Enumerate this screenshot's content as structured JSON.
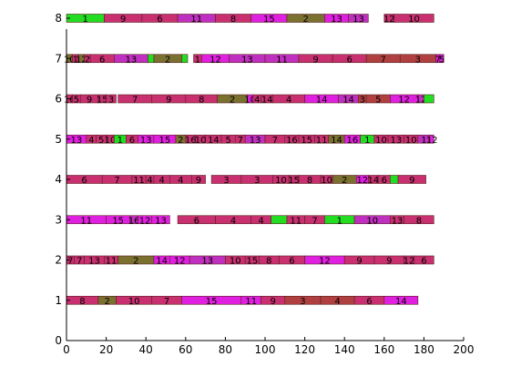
{
  "chart_data": {
    "type": "bar",
    "orientation": "horizontal-stacked",
    "title": "",
    "xlabel": "",
    "ylabel": "",
    "xlim": [
      0,
      200
    ],
    "ylim": [
      0,
      8
    ],
    "xticks": [
      0,
      20,
      40,
      60,
      80,
      100,
      120,
      140,
      160,
      180,
      200
    ],
    "yticks": [
      0,
      1,
      2,
      3,
      4,
      5,
      6,
      7,
      8
    ],
    "grid": false,
    "legend": "none",
    "colors": {
      "bright_green": "#22dd22",
      "magenta": "#e020e0",
      "rose": "#c83070",
      "red_brown": "#b04040",
      "olive": "#7a7030",
      "purple": "#c030c0"
    },
    "rows": [
      {
        "y": 8,
        "segments": [
          {
            "start": 0,
            "end": 19,
            "label": "1",
            "color": "#22dd22"
          },
          {
            "start": 19,
            "end": 38,
            "label": "9",
            "color": "#c83070"
          },
          {
            "start": 38,
            "end": 56,
            "label": "6",
            "color": "#c83070"
          },
          {
            "start": 56,
            "end": 75,
            "label": "11",
            "color": "#c030c0"
          },
          {
            "start": 75,
            "end": 93,
            "label": "8",
            "color": "#c83070"
          },
          {
            "start": 93,
            "end": 111,
            "label": "15",
            "color": "#e020e0"
          },
          {
            "start": 111,
            "end": 130,
            "label": "2",
            "color": "#7a7030"
          },
          {
            "start": 130,
            "end": 142,
            "label": "13",
            "color": "#e020e0"
          },
          {
            "start": 142,
            "end": 152,
            "label": "13",
            "color": "#c030c0"
          },
          {
            "start": 160,
            "end": 165,
            "label": "12",
            "color": "#c83070"
          },
          {
            "start": 165,
            "end": 185,
            "label": "10",
            "color": "#c83070"
          }
        ]
      },
      {
        "y": 7,
        "segments": [
          {
            "start": 0,
            "end": 3,
            "label": "10",
            "color": "#7a7030"
          },
          {
            "start": 3,
            "end": 6,
            "label": "1",
            "color": "#c83070"
          },
          {
            "start": 6,
            "end": 9,
            "label": "12",
            "color": "#7a7030"
          },
          {
            "start": 9,
            "end": 12,
            "label": "2",
            "color": "#c83070"
          },
          {
            "start": 12,
            "end": 24,
            "label": "6",
            "color": "#c83070"
          },
          {
            "start": 24,
            "end": 41,
            "label": "13",
            "color": "#c030c0"
          },
          {
            "start": 41,
            "end": 44,
            "label": "",
            "color": "#22dd22"
          },
          {
            "start": 44,
            "end": 58,
            "label": "2",
            "color": "#7a7030"
          },
          {
            "start": 58,
            "end": 61,
            "label": "",
            "color": "#22dd22"
          },
          {
            "start": 64,
            "end": 68,
            "label": "1",
            "color": "#c83070"
          },
          {
            "start": 68,
            "end": 82,
            "label": "12",
            "color": "#e020e0"
          },
          {
            "start": 82,
            "end": 100,
            "label": "13",
            "color": "#c030c0"
          },
          {
            "start": 100,
            "end": 117,
            "label": "11",
            "color": "#c030c0"
          },
          {
            "start": 117,
            "end": 134,
            "label": "9",
            "color": "#c83070"
          },
          {
            "start": 134,
            "end": 151,
            "label": "6",
            "color": "#c83070"
          },
          {
            "start": 151,
            "end": 168,
            "label": "7",
            "color": "#b04040"
          },
          {
            "start": 168,
            "end": 186,
            "label": "3",
            "color": "#b04040"
          },
          {
            "start": 186,
            "end": 188,
            "label": "7",
            "color": "#e020e0"
          },
          {
            "start": 188,
            "end": 190,
            "label": "5",
            "color": "#e020e0"
          }
        ]
      },
      {
        "y": 6,
        "segments": [
          {
            "start": 0,
            "end": 3,
            "label": "16",
            "color": "#c83070"
          },
          {
            "start": 3,
            "end": 7,
            "label": "5",
            "color": "#c83070"
          },
          {
            "start": 7,
            "end": 16,
            "label": "9",
            "color": "#c83070"
          },
          {
            "start": 16,
            "end": 20,
            "label": "15",
            "color": "#c83070"
          },
          {
            "start": 20,
            "end": 25,
            "label": "3",
            "color": "#c83070"
          },
          {
            "start": 26,
            "end": 43,
            "label": "7",
            "color": "#c83070"
          },
          {
            "start": 43,
            "end": 60,
            "label": "9",
            "color": "#c83070"
          },
          {
            "start": 60,
            "end": 76,
            "label": "8",
            "color": "#c83070"
          },
          {
            "start": 76,
            "end": 91,
            "label": "2",
            "color": "#7a7030"
          },
          {
            "start": 91,
            "end": 94,
            "label": "10",
            "color": "#e020e0"
          },
          {
            "start": 94,
            "end": 98,
            "label": "4",
            "color": "#c83070"
          },
          {
            "start": 98,
            "end": 104,
            "label": "14",
            "color": "#c83070"
          },
          {
            "start": 104,
            "end": 120,
            "label": "4",
            "color": "#c83070"
          },
          {
            "start": 120,
            "end": 137,
            "label": "14",
            "color": "#e020e0"
          },
          {
            "start": 137,
            "end": 147,
            "label": "14",
            "color": "#c030c0"
          },
          {
            "start": 147,
            "end": 151,
            "label": "3",
            "color": "#b04040"
          },
          {
            "start": 151,
            "end": 163,
            "label": "5",
            "color": "#b04040"
          },
          {
            "start": 163,
            "end": 177,
            "label": "12",
            "color": "#e020e0"
          },
          {
            "start": 177,
            "end": 180,
            "label": "12",
            "color": "#c030c0"
          },
          {
            "start": 180,
            "end": 185,
            "label": "",
            "color": "#22dd22"
          }
        ]
      },
      {
        "y": 5,
        "segments": [
          {
            "start": 0,
            "end": 10,
            "label": "13",
            "color": "#e020e0"
          },
          {
            "start": 10,
            "end": 15,
            "label": "4",
            "color": "#c83070"
          },
          {
            "start": 15,
            "end": 20,
            "label": "5",
            "color": "#c83070"
          },
          {
            "start": 20,
            "end": 24,
            "label": "10",
            "color": "#c83070"
          },
          {
            "start": 24,
            "end": 30,
            "label": "1",
            "color": "#22dd22"
          },
          {
            "start": 30,
            "end": 36,
            "label": "6",
            "color": "#c83070"
          },
          {
            "start": 36,
            "end": 44,
            "label": "13",
            "color": "#e020e0"
          },
          {
            "start": 44,
            "end": 55,
            "label": "15",
            "color": "#e020e0"
          },
          {
            "start": 55,
            "end": 60,
            "label": "2",
            "color": "#7a7030"
          },
          {
            "start": 60,
            "end": 65,
            "label": "16",
            "color": "#c83070"
          },
          {
            "start": 65,
            "end": 70,
            "label": "10",
            "color": "#c83070"
          },
          {
            "start": 70,
            "end": 78,
            "label": "14",
            "color": "#c83070"
          },
          {
            "start": 78,
            "end": 85,
            "label": "5",
            "color": "#c83070"
          },
          {
            "start": 85,
            "end": 90,
            "label": "7",
            "color": "#c83070"
          },
          {
            "start": 90,
            "end": 100,
            "label": "13",
            "color": "#c030c0"
          },
          {
            "start": 100,
            "end": 110,
            "label": "7",
            "color": "#c83070"
          },
          {
            "start": 110,
            "end": 117,
            "label": "16",
            "color": "#c83070"
          },
          {
            "start": 117,
            "end": 125,
            "label": "15",
            "color": "#c83070"
          },
          {
            "start": 125,
            "end": 132,
            "label": "11",
            "color": "#c83070"
          },
          {
            "start": 132,
            "end": 140,
            "label": "14",
            "color": "#7a7030"
          },
          {
            "start": 140,
            "end": 148,
            "label": "16",
            "color": "#e020e0"
          },
          {
            "start": 148,
            "end": 155,
            "label": "1",
            "color": "#22dd22"
          },
          {
            "start": 155,
            "end": 162,
            "label": "10",
            "color": "#c83070"
          },
          {
            "start": 162,
            "end": 170,
            "label": "13",
            "color": "#c83070"
          },
          {
            "start": 170,
            "end": 177,
            "label": "10",
            "color": "#c83070"
          },
          {
            "start": 177,
            "end": 183,
            "label": "1",
            "color": "#c030c0"
          },
          {
            "start": 183,
            "end": 185,
            "label": "12",
            "color": "#e020e0"
          }
        ]
      },
      {
        "y": 4,
        "segments": [
          {
            "start": 0,
            "end": 18,
            "label": "6",
            "color": "#c83070"
          },
          {
            "start": 18,
            "end": 33,
            "label": "7",
            "color": "#c83070"
          },
          {
            "start": 33,
            "end": 40,
            "label": "11",
            "color": "#c83070"
          },
          {
            "start": 40,
            "end": 44,
            "label": "4",
            "color": "#c83070"
          },
          {
            "start": 44,
            "end": 52,
            "label": "4",
            "color": "#c83070"
          },
          {
            "start": 52,
            "end": 63,
            "label": "4",
            "color": "#c83070"
          },
          {
            "start": 63,
            "end": 70,
            "label": "9",
            "color": "#c83070"
          },
          {
            "start": 73,
            "end": 88,
            "label": "3",
            "color": "#c83070"
          },
          {
            "start": 88,
            "end": 104,
            "label": "3",
            "color": "#c83070"
          },
          {
            "start": 104,
            "end": 112,
            "label": "10",
            "color": "#c83070"
          },
          {
            "start": 112,
            "end": 117,
            "label": "15",
            "color": "#c83070"
          },
          {
            "start": 117,
            "end": 128,
            "label": "8",
            "color": "#c83070"
          },
          {
            "start": 128,
            "end": 134,
            "label": "10",
            "color": "#c83070"
          },
          {
            "start": 134,
            "end": 146,
            "label": "2",
            "color": "#7a7030"
          },
          {
            "start": 146,
            "end": 152,
            "label": "12",
            "color": "#e020e0"
          },
          {
            "start": 152,
            "end": 157,
            "label": "14",
            "color": "#c83070"
          },
          {
            "start": 157,
            "end": 163,
            "label": "6",
            "color": "#c83070"
          },
          {
            "start": 163,
            "end": 167,
            "label": "",
            "color": "#22dd22"
          },
          {
            "start": 167,
            "end": 181,
            "label": "9",
            "color": "#c83070"
          }
        ]
      },
      {
        "y": 3,
        "segments": [
          {
            "start": 0,
            "end": 20,
            "label": "11",
            "color": "#e020e0"
          },
          {
            "start": 20,
            "end": 32,
            "label": "15",
            "color": "#e020e0"
          },
          {
            "start": 32,
            "end": 36,
            "label": "16",
            "color": "#c030c0"
          },
          {
            "start": 36,
            "end": 43,
            "label": "12",
            "color": "#e020e0"
          },
          {
            "start": 43,
            "end": 52,
            "label": "13",
            "color": "#e020e0"
          },
          {
            "start": 56,
            "end": 75,
            "label": "6",
            "color": "#c83070"
          },
          {
            "start": 75,
            "end": 93,
            "label": "4",
            "color": "#c83070"
          },
          {
            "start": 93,
            "end": 103,
            "label": "4",
            "color": "#c83070"
          },
          {
            "start": 103,
            "end": 111,
            "label": "",
            "color": "#22dd22"
          },
          {
            "start": 111,
            "end": 120,
            "label": "11",
            "color": "#c83070"
          },
          {
            "start": 120,
            "end": 130,
            "label": "7",
            "color": "#c83070"
          },
          {
            "start": 130,
            "end": 145,
            "label": "1",
            "color": "#22dd22"
          },
          {
            "start": 145,
            "end": 163,
            "label": "10",
            "color": "#c030c0"
          },
          {
            "start": 163,
            "end": 170,
            "label": "13",
            "color": "#c83070"
          },
          {
            "start": 170,
            "end": 185,
            "label": "8",
            "color": "#c83070"
          }
        ]
      },
      {
        "y": 2,
        "segments": [
          {
            "start": 0,
            "end": 4,
            "label": "7",
            "color": "#c83070"
          },
          {
            "start": 4,
            "end": 9,
            "label": "7",
            "color": "#c83070"
          },
          {
            "start": 9,
            "end": 19,
            "label": "13",
            "color": "#c83070"
          },
          {
            "start": 19,
            "end": 26,
            "label": "11",
            "color": "#c83070"
          },
          {
            "start": 26,
            "end": 44,
            "label": "2",
            "color": "#7a7030"
          },
          {
            "start": 44,
            "end": 52,
            "label": "14",
            "color": "#e020e0"
          },
          {
            "start": 52,
            "end": 62,
            "label": "12",
            "color": "#e020e0"
          },
          {
            "start": 62,
            "end": 80,
            "label": "13",
            "color": "#c030c0"
          },
          {
            "start": 80,
            "end": 90,
            "label": "10",
            "color": "#c83070"
          },
          {
            "start": 90,
            "end": 97,
            "label": "15",
            "color": "#c83070"
          },
          {
            "start": 97,
            "end": 107,
            "label": "8",
            "color": "#c83070"
          },
          {
            "start": 107,
            "end": 120,
            "label": "6",
            "color": "#c83070"
          },
          {
            "start": 120,
            "end": 140,
            "label": "12",
            "color": "#e020e0"
          },
          {
            "start": 140,
            "end": 155,
            "label": "9",
            "color": "#c83070"
          },
          {
            "start": 155,
            "end": 170,
            "label": "9",
            "color": "#c83070"
          },
          {
            "start": 170,
            "end": 175,
            "label": "12",
            "color": "#c83070"
          },
          {
            "start": 175,
            "end": 185,
            "label": "6",
            "color": "#c83070"
          }
        ]
      },
      {
        "y": 1,
        "segments": [
          {
            "start": 0,
            "end": 16,
            "label": "8",
            "color": "#c83070"
          },
          {
            "start": 16,
            "end": 25,
            "label": "2",
            "color": "#7a7030"
          },
          {
            "start": 25,
            "end": 43,
            "label": "10",
            "color": "#c83070"
          },
          {
            "start": 43,
            "end": 58,
            "label": "7",
            "color": "#c83070"
          },
          {
            "start": 58,
            "end": 88,
            "label": "15",
            "color": "#e020e0"
          },
          {
            "start": 88,
            "end": 98,
            "label": "11",
            "color": "#e020e0"
          },
          {
            "start": 98,
            "end": 110,
            "label": "9",
            "color": "#c83070"
          },
          {
            "start": 110,
            "end": 128,
            "label": "3",
            "color": "#b04040"
          },
          {
            "start": 128,
            "end": 145,
            "label": "4",
            "color": "#b04040"
          },
          {
            "start": 145,
            "end": 160,
            "label": "6",
            "color": "#c83070"
          },
          {
            "start": 160,
            "end": 177,
            "label": "14",
            "color": "#e020e0"
          }
        ]
      }
    ]
  }
}
